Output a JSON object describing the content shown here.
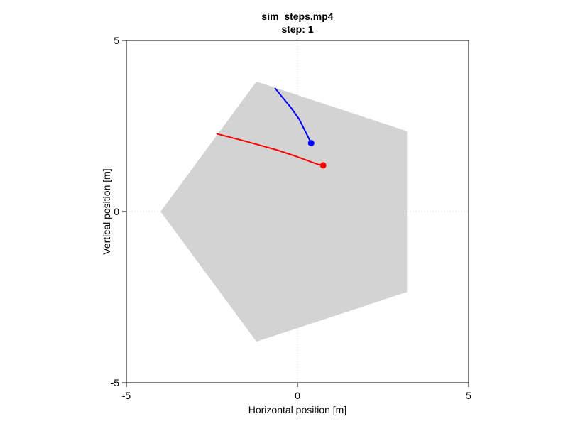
{
  "chart_data": {
    "type": "line",
    "title": "sim_steps.mp4",
    "subtitle": "step: 1",
    "xlabel": "Horizontal position [m]",
    "ylabel": "Vertical position [m]",
    "xlim": [
      -5,
      5
    ],
    "ylim": [
      -5,
      5
    ],
    "xticks": [
      "-5",
      "0",
      "5"
    ],
    "yticks": [
      "-5",
      "0",
      "5"
    ],
    "grid": "dotted lines at 0",
    "region": {
      "color": "#d3d3d3",
      "vertices": [
        [
          -1.2,
          3.8
        ],
        [
          3.2,
          2.35
        ],
        [
          3.2,
          -2.35
        ],
        [
          -1.2,
          -3.8
        ],
        [
          -4.0,
          0.0
        ]
      ]
    },
    "series": [
      {
        "color": "#0000ff",
        "x": [
          -0.65,
          -0.45,
          -0.2,
          0.05,
          0.2,
          0.3,
          0.4
        ],
        "y": [
          3.6,
          3.35,
          3.05,
          2.7,
          2.4,
          2.2,
          2.0
        ],
        "marker": [
          0.4,
          2.0
        ]
      },
      {
        "color": "#ff0000",
        "x": [
          -2.35,
          -1.5,
          -0.6,
          0.0,
          0.4,
          0.6,
          0.75
        ],
        "y": [
          2.27,
          2.05,
          1.8,
          1.6,
          1.45,
          1.38,
          1.35
        ],
        "marker": [
          0.75,
          1.35
        ]
      }
    ]
  }
}
